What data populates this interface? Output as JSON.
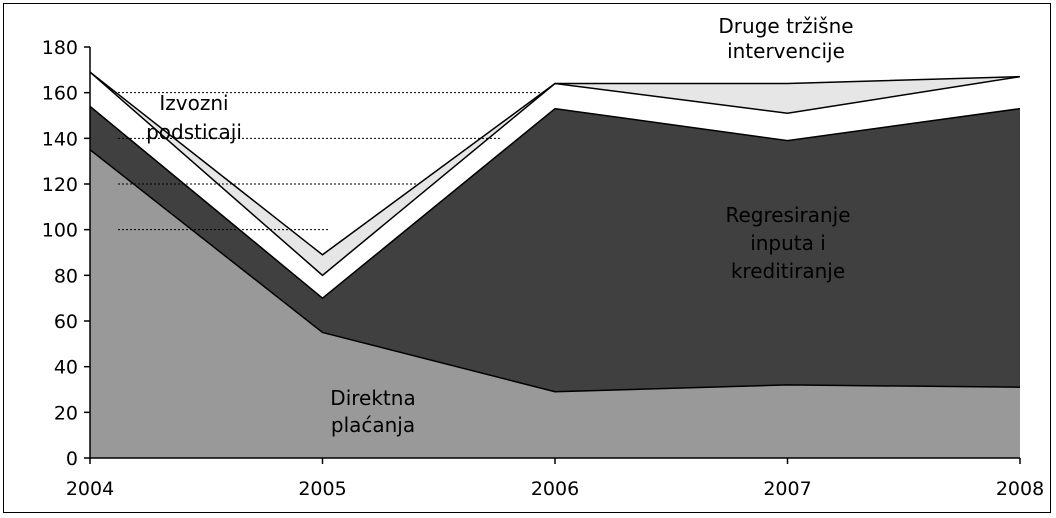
{
  "chart_data": {
    "type": "area",
    "stacked": true,
    "x": [
      2004,
      2005,
      2006,
      2007,
      2008
    ],
    "ylim": [
      0,
      180
    ],
    "yticks": [
      0,
      20,
      40,
      60,
      80,
      100,
      120,
      140,
      160,
      180
    ],
    "grid": false,
    "legend": "none",
    "series": [
      {
        "name": "Direktna plaćanja",
        "values": [
          135,
          55,
          29,
          32,
          31
        ],
        "color": "#999999"
      },
      {
        "name": "Regresiranje inputa i kreditiranje",
        "values": [
          19,
          15,
          124,
          107,
          122
        ],
        "color": "#404040"
      },
      {
        "name": "Izvozni podsticaji",
        "values": [
          15,
          10,
          11,
          12,
          14
        ],
        "color": "#ffffff"
      },
      {
        "name": "Druge tržišne intervencije",
        "values": [
          0,
          9,
          0,
          13,
          0
        ],
        "color": "#e6e6e6"
      }
    ],
    "annotations": [
      {
        "id": "direktna",
        "lines": [
          "Direktna",
          "plaćanja"
        ]
      },
      {
        "id": "regresiranje",
        "lines": [
          "Regresiranje",
          "inputa i",
          "kreditiranje"
        ]
      },
      {
        "id": "izvozni",
        "lines": [
          "Izvozni",
          "podsticaji"
        ]
      },
      {
        "id": "druge",
        "lines": [
          "Druge tržišne",
          "intervencije"
        ]
      }
    ]
  }
}
